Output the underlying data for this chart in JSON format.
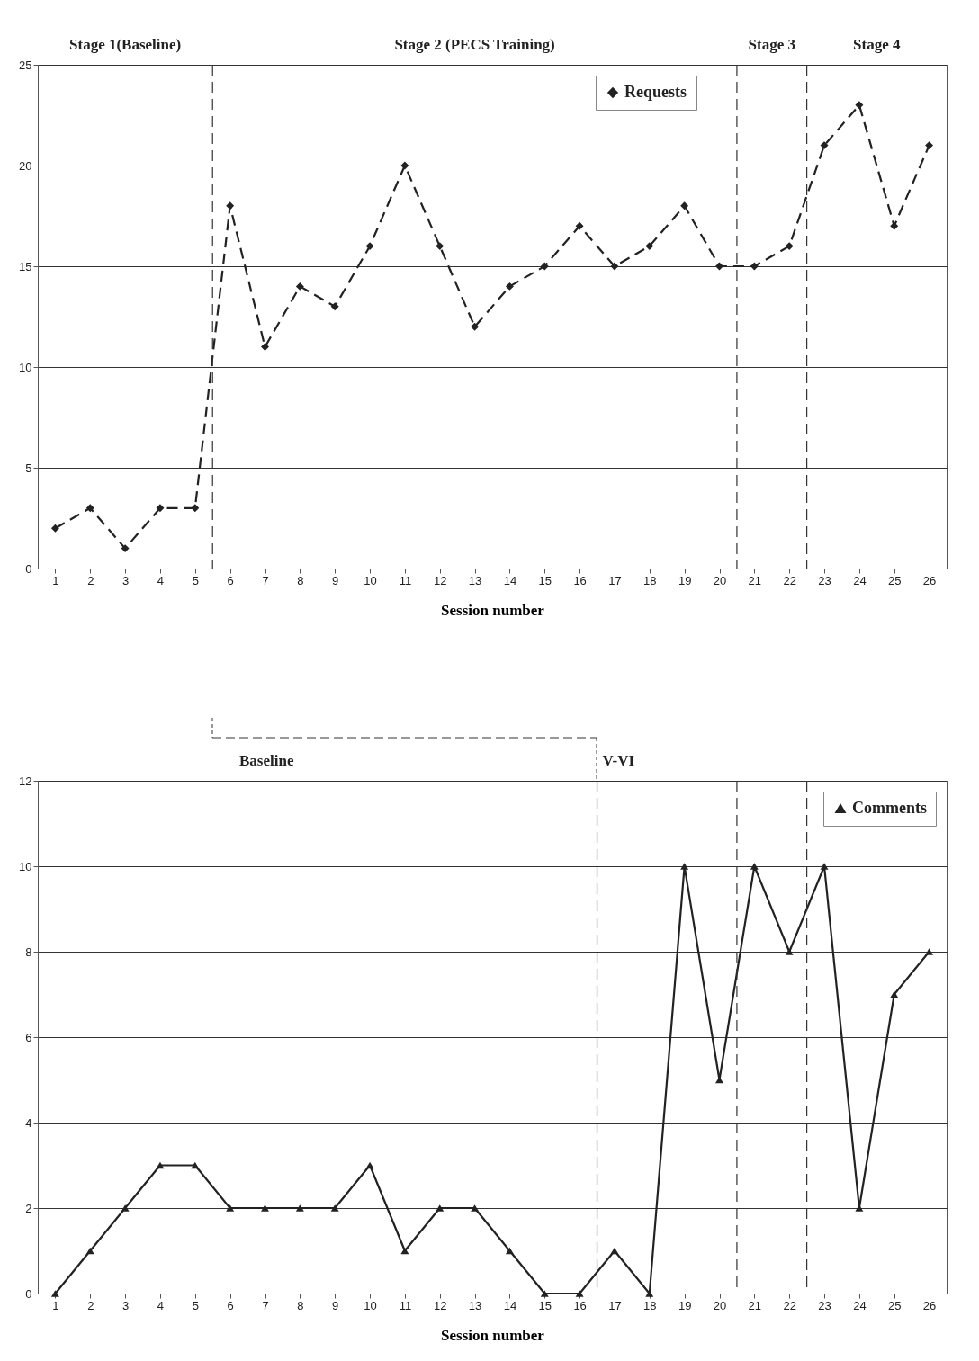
{
  "chart_data": [
    {
      "type": "line",
      "xlabel": "Session number",
      "x": [
        1,
        2,
        3,
        4,
        5,
        6,
        7,
        8,
        9,
        10,
        11,
        12,
        13,
        14,
        15,
        16,
        17,
        18,
        19,
        20,
        21,
        22,
        23,
        24,
        25,
        26
      ],
      "xlim": [
        0.5,
        26.5
      ],
      "xticks": [
        1,
        2,
        3,
        4,
        5,
        6,
        7,
        8,
        9,
        10,
        11,
        12,
        13,
        14,
        15,
        16,
        17,
        18,
        19,
        20,
        21,
        22,
        23,
        24,
        25,
        26
      ],
      "ylim": [
        0,
        25
      ],
      "yticks": [
        0,
        5,
        10,
        15,
        20,
        25
      ],
      "grid": "y",
      "legend": "top right",
      "marker": "diamond",
      "line_style": "dashed",
      "series": [
        {
          "name": "Requests",
          "color": "#222222",
          "values": [
            2,
            3,
            1,
            3,
            3,
            18,
            11,
            14,
            13,
            16,
            20,
            16,
            12,
            14,
            15,
            17,
            15,
            16,
            18,
            15,
            15,
            16,
            21,
            23,
            17,
            21
          ]
        }
      ],
      "ref_lines": [
        {
          "axis": "x",
          "value": 5.5,
          "color": "#333333",
          "line_style": "dashed"
        },
        {
          "axis": "x",
          "value": 20.5,
          "color": "#333333",
          "line_style": "dashed"
        },
        {
          "axis": "x",
          "value": 22.5,
          "color": "#333333",
          "line_style": "dashed"
        }
      ],
      "annotations": [
        "Stage 1(Baseline)",
        "Stage 2 (PECS Training)",
        "Stage 3",
        "Stage 4"
      ]
    },
    {
      "type": "line",
      "xlabel": "Session number",
      "x": [
        1,
        2,
        3,
        4,
        5,
        6,
        7,
        8,
        9,
        10,
        11,
        12,
        13,
        14,
        15,
        16,
        17,
        18,
        19,
        20,
        21,
        22,
        23,
        24,
        25,
        26
      ],
      "xlim": [
        0.5,
        26.5
      ],
      "xticks": [
        1,
        2,
        3,
        4,
        5,
        6,
        7,
        8,
        9,
        10,
        11,
        12,
        13,
        14,
        15,
        16,
        17,
        18,
        19,
        20,
        21,
        22,
        23,
        24,
        25,
        26
      ],
      "ylim": [
        0,
        12
      ],
      "yticks": [
        0,
        2,
        4,
        6,
        8,
        10,
        12
      ],
      "grid": "y",
      "legend": "top right",
      "marker": "triangle",
      "line_style": "solid",
      "series": [
        {
          "name": "Comments",
          "color": "#222222",
          "values": [
            0,
            1,
            2,
            3,
            3,
            2,
            2,
            2,
            2,
            3,
            1,
            2,
            2,
            1,
            0,
            0,
            1,
            0,
            10,
            5,
            10,
            8,
            10,
            2,
            7,
            8
          ]
        }
      ],
      "ref_lines": [
        {
          "axis": "x",
          "value": 16.5,
          "color": "#333333",
          "line_style": "dashed"
        },
        {
          "axis": "x",
          "value": 20.5,
          "color": "#333333",
          "line_style": "dashed"
        },
        {
          "axis": "x",
          "value": 22.5,
          "color": "#333333",
          "line_style": "dashed"
        }
      ],
      "annotations": [
        "Baseline",
        "V-VI"
      ]
    }
  ]
}
